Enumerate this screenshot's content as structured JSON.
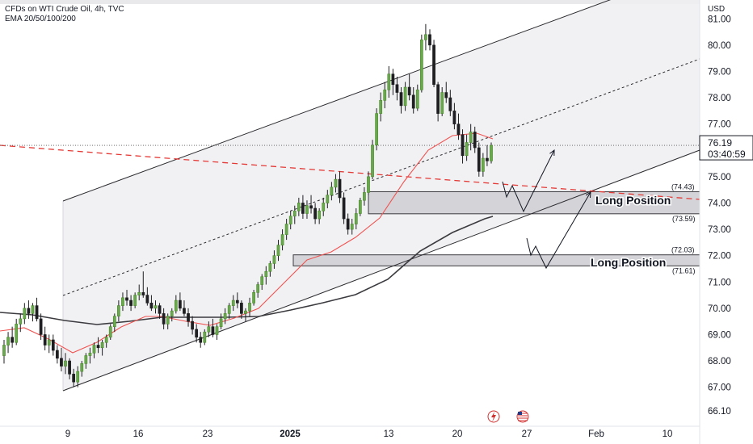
{
  "header": {
    "title": "CFDs on WTI Crude Oil, 4h, TVC",
    "indicator": "EMA 20/50/100/200"
  },
  "price_axis": {
    "currency": "USD"
  },
  "chart_data": {
    "type": "candlestick",
    "symbol": "CFDs on WTI Crude Oil",
    "timeframe": "4h",
    "source": "TVC",
    "ylim": [
      65.8,
      81.6
    ],
    "y_ticks": [
      "66.10",
      "67.00",
      "68.00",
      "69.00",
      "70.00",
      "71.00",
      "72.00",
      "73.00",
      "74.00",
      "75.00",
      "76.00",
      "77.00",
      "78.00",
      "79.00",
      "80.00",
      "81.00"
    ],
    "x_ticks": [
      "9",
      "16",
      "23",
      "2025",
      "13",
      "20",
      "27",
      "Feb",
      "10"
    ],
    "current_price": {
      "value": "76.19",
      "countdown": "03:40:59"
    },
    "zones": [
      {
        "top": 74.43,
        "bottom": 73.59,
        "top_label": "(74.43)",
        "bottom_label": "(73.59)",
        "label": "Long Position"
      },
      {
        "top": 72.03,
        "bottom": 71.61,
        "top_label": "(72.03)",
        "bottom_label": "(71.61)",
        "label": "Long Position"
      }
    ],
    "series": [
      {
        "name": "WTI",
        "ohlc_note": "open, high, low, close per 4h bar",
        "candles": [
          [
            68.2,
            68.8,
            67.9,
            68.6
          ],
          [
            68.6,
            69.1,
            68.3,
            68.9
          ],
          [
            68.9,
            69.3,
            68.5,
            68.7
          ],
          [
            68.7,
            69.6,
            68.6,
            69.4
          ],
          [
            69.4,
            69.8,
            69.1,
            69.6
          ],
          [
            69.6,
            70.2,
            69.4,
            70.0
          ],
          [
            70.0,
            70.3,
            69.6,
            69.8
          ],
          [
            69.8,
            70.2,
            69.5,
            70.1
          ],
          [
            70.1,
            70.4,
            69.5,
            69.6
          ],
          [
            69.6,
            69.8,
            68.8,
            69.0
          ],
          [
            69.0,
            69.3,
            68.4,
            68.6
          ],
          [
            68.6,
            69.0,
            68.3,
            68.8
          ],
          [
            68.8,
            69.0,
            68.2,
            68.4
          ],
          [
            68.4,
            68.6,
            67.9,
            68.1
          ],
          [
            68.1,
            68.5,
            67.6,
            67.8
          ],
          [
            67.8,
            68.3,
            67.5,
            68.0
          ],
          [
            68.0,
            68.1,
            67.3,
            67.5
          ],
          [
            67.5,
            67.7,
            67.0,
            67.2
          ],
          [
            67.2,
            67.8,
            67.0,
            67.6
          ],
          [
            67.6,
            68.0,
            67.4,
            67.9
          ],
          [
            67.9,
            68.3,
            67.7,
            68.2
          ],
          [
            68.2,
            68.5,
            67.9,
            68.3
          ],
          [
            68.3,
            68.7,
            68.1,
            68.6
          ],
          [
            68.6,
            68.9,
            68.3,
            68.5
          ],
          [
            68.5,
            68.8,
            68.2,
            68.7
          ],
          [
            68.7,
            69.0,
            68.5,
            68.9
          ],
          [
            68.9,
            69.4,
            68.8,
            69.3
          ],
          [
            69.3,
            69.8,
            69.1,
            69.7
          ],
          [
            69.7,
            70.3,
            69.5,
            70.1
          ],
          [
            70.1,
            70.6,
            69.9,
            70.4
          ],
          [
            70.4,
            70.7,
            70.1,
            70.3
          ],
          [
            70.3,
            70.5,
            69.9,
            70.1
          ],
          [
            70.1,
            70.6,
            70.0,
            70.5
          ],
          [
            70.5,
            70.9,
            70.3,
            70.6
          ],
          [
            70.6,
            71.4,
            70.4,
            70.5
          ],
          [
            70.5,
            70.8,
            70.1,
            70.2
          ],
          [
            70.2,
            70.5,
            69.9,
            70.0
          ],
          [
            70.0,
            70.3,
            69.8,
            70.1
          ],
          [
            70.1,
            70.2,
            69.6,
            69.8
          ],
          [
            69.8,
            70.0,
            69.2,
            69.4
          ],
          [
            69.4,
            69.8,
            69.2,
            69.7
          ],
          [
            69.7,
            70.0,
            69.5,
            69.9
          ],
          [
            69.9,
            70.5,
            69.8,
            70.3
          ],
          [
            70.3,
            70.6,
            69.9,
            70.0
          ],
          [
            70.0,
            70.3,
            69.7,
            69.8
          ],
          [
            69.8,
            70.0,
            69.3,
            69.5
          ],
          [
            69.5,
            69.7,
            69.0,
            69.2
          ],
          [
            69.2,
            69.4,
            68.7,
            68.9
          ],
          [
            68.9,
            69.1,
            68.5,
            68.7
          ],
          [
            68.7,
            69.2,
            68.6,
            69.1
          ],
          [
            69.1,
            69.5,
            68.9,
            69.3
          ],
          [
            69.3,
            69.6,
            68.9,
            69.0
          ],
          [
            69.0,
            69.4,
            68.8,
            69.3
          ],
          [
            69.3,
            69.8,
            69.2,
            69.6
          ],
          [
            69.6,
            70.0,
            69.4,
            69.8
          ],
          [
            69.8,
            70.2,
            69.6,
            70.1
          ],
          [
            70.1,
            70.5,
            69.9,
            70.3
          ],
          [
            70.3,
            70.6,
            70.0,
            70.2
          ],
          [
            70.2,
            70.3,
            69.6,
            69.8
          ],
          [
            69.8,
            70.0,
            69.5,
            69.9
          ],
          [
            69.9,
            70.4,
            69.7,
            70.2
          ],
          [
            70.2,
            70.7,
            70.1,
            70.6
          ],
          [
            70.6,
            71.0,
            70.4,
            70.9
          ],
          [
            70.9,
            71.3,
            70.7,
            71.2
          ],
          [
            71.2,
            71.6,
            70.9,
            71.4
          ],
          [
            71.4,
            71.8,
            71.2,
            71.7
          ],
          [
            71.7,
            72.2,
            71.5,
            72.0
          ],
          [
            72.0,
            72.6,
            71.8,
            72.4
          ],
          [
            72.4,
            73.0,
            72.2,
            72.8
          ],
          [
            72.8,
            73.4,
            72.6,
            73.2
          ],
          [
            73.2,
            73.7,
            73.0,
            73.5
          ],
          [
            73.5,
            73.9,
            73.2,
            73.7
          ],
          [
            73.7,
            74.2,
            73.5,
            74.0
          ],
          [
            74.0,
            74.3,
            73.4,
            73.6
          ],
          [
            73.6,
            74.1,
            73.4,
            73.9
          ],
          [
            73.9,
            74.3,
            73.6,
            73.8
          ],
          [
            73.8,
            74.0,
            73.2,
            73.4
          ],
          [
            73.4,
            73.8,
            73.2,
            73.7
          ],
          [
            73.7,
            74.2,
            73.5,
            74.0
          ],
          [
            74.0,
            74.5,
            73.8,
            74.3
          ],
          [
            74.3,
            74.8,
            74.1,
            74.6
          ],
          [
            74.6,
            75.1,
            74.4,
            74.9
          ],
          [
            74.9,
            75.2,
            74.0,
            74.2
          ],
          [
            74.2,
            74.4,
            73.2,
            73.4
          ],
          [
            73.4,
            73.6,
            72.8,
            73.0
          ],
          [
            73.0,
            73.4,
            72.8,
            73.2
          ],
          [
            73.2,
            73.8,
            73.0,
            73.6
          ],
          [
            73.6,
            74.2,
            73.5,
            74.1
          ],
          [
            74.1,
            74.6,
            73.9,
            74.4
          ],
          [
            74.4,
            75.2,
            74.3,
            75.0
          ],
          [
            75.0,
            76.4,
            74.9,
            76.2
          ],
          [
            76.2,
            77.6,
            76.0,
            77.4
          ],
          [
            77.4,
            78.2,
            77.1,
            77.9
          ],
          [
            77.9,
            78.6,
            77.6,
            78.3
          ],
          [
            78.3,
            79.2,
            78.0,
            78.9
          ],
          [
            78.9,
            79.1,
            78.1,
            78.5
          ],
          [
            78.5,
            78.8,
            77.9,
            78.2
          ],
          [
            78.2,
            78.4,
            77.4,
            77.7
          ],
          [
            77.7,
            78.6,
            77.5,
            78.4
          ],
          [
            78.4,
            78.9,
            77.9,
            78.1
          ],
          [
            78.1,
            78.4,
            77.4,
            77.6
          ],
          [
            77.6,
            78.5,
            77.5,
            78.3
          ],
          [
            78.3,
            80.4,
            78.2,
            80.2
          ],
          [
            80.2,
            80.8,
            79.8,
            80.4
          ],
          [
            80.4,
            80.6,
            79.8,
            80.0
          ],
          [
            80.0,
            80.2,
            78.4,
            78.5
          ],
          [
            78.5,
            78.6,
            77.1,
            77.4
          ],
          [
            77.4,
            78.4,
            77.3,
            78.2
          ],
          [
            78.2,
            78.6,
            77.8,
            78.0
          ],
          [
            78.0,
            78.3,
            77.3,
            77.5
          ],
          [
            77.5,
            77.8,
            76.8,
            77.0
          ],
          [
            77.0,
            77.4,
            76.4,
            76.6
          ],
          [
            76.6,
            76.8,
            75.5,
            75.8
          ],
          [
            75.8,
            76.6,
            75.6,
            76.3
          ],
          [
            76.3,
            77.0,
            76.0,
            76.7
          ],
          [
            76.7,
            76.9,
            75.9,
            76.1
          ],
          [
            76.1,
            76.3,
            75.0,
            75.2
          ],
          [
            75.2,
            75.9,
            75.0,
            75.7
          ],
          [
            75.7,
            76.2,
            75.4,
            75.6
          ],
          [
            75.6,
            76.3,
            75.5,
            76.19
          ]
        ]
      }
    ],
    "annotation": "ascending channel, EMA 20 (red), EMA 200 (dark grey), projected path arrows"
  }
}
